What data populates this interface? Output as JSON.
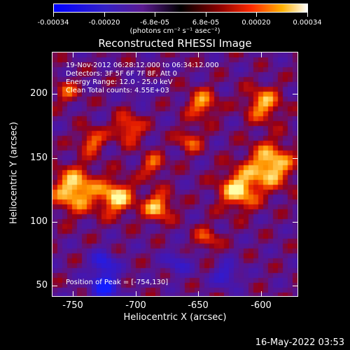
{
  "colorbar": {
    "tick_labels": [
      "-0.00034",
      "-0.00020",
      "-6.8e-05",
      "6.8e-05",
      "0.00020",
      "0.00034"
    ],
    "unit_label": "(photons cm⁻² s⁻¹ asec⁻²)"
  },
  "plot": {
    "title": "Reconstructed RHESSI Image",
    "info_lines": [
      "19-Nov-2012 06:28:12.000 to 06:34:12.000",
      "Detectors: 3F 5F 6F 7F 8F, Att 0",
      "Energy Range: 12.0 - 25.0 keV",
      "Clean     Total counts: 4.55E+03"
    ],
    "peak_label": "Position of Peak = [-754,130]",
    "x_axis_title": "Heliocentric X (arcsec)",
    "y_axis_title": "Heliocentric Y (arcsec)",
    "x_tick_labels": [
      "-750",
      "-700",
      "-650",
      "-600"
    ],
    "y_tick_labels": [
      "200",
      "150",
      "100",
      "50"
    ]
  },
  "footer": {
    "timestamp": "16-May-2022 03:53"
  }
}
